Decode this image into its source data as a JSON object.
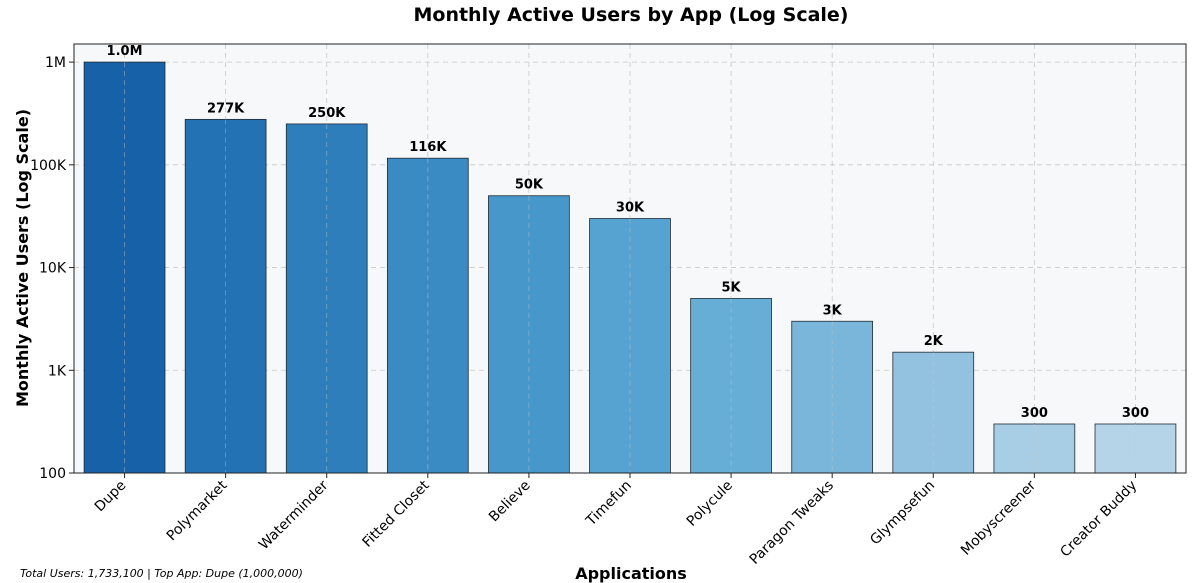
{
  "chart_data": {
    "type": "bar",
    "title": "Monthly Active Users by App (Log Scale)",
    "xlabel": "Applications",
    "ylabel": "Monthly Active Users (Log Scale)",
    "y_scale": "log",
    "ylim": [
      100,
      1500000
    ],
    "y_ticks": [
      100,
      1000,
      10000,
      100000,
      1000000
    ],
    "y_tick_labels": [
      "100",
      "1K",
      "10K",
      "100K",
      "1M"
    ],
    "grid": true,
    "categories": [
      "Dupe",
      "Polymarket",
      "Waterminder",
      "Fitted Closet",
      "Believe",
      "Timefun",
      "Polycule",
      "Paragon Tweaks",
      "Glympsefun",
      "Mobyscreener",
      "Creator Buddy"
    ],
    "values": [
      1000000,
      277000,
      250000,
      116000,
      50000,
      30000,
      5000,
      3000,
      1500,
      300,
      300
    ],
    "value_labels": [
      "1.0M",
      "277K",
      "250K",
      "116K",
      "50K",
      "30K",
      "5K",
      "3K",
      "2K",
      "300",
      "300"
    ],
    "colors": [
      "#1761a8",
      "#2272b4",
      "#2e7ebc",
      "#3a8bc4",
      "#4797ca",
      "#56a2d0",
      "#67aed6",
      "#7ab6d9",
      "#92c2df",
      "#a7ceE4",
      "#b6d4e8"
    ],
    "plot_background": "#f7f8fa",
    "footnote": "Total Users: 1,733,100 | Top App: Dupe (1,000,000)"
  }
}
